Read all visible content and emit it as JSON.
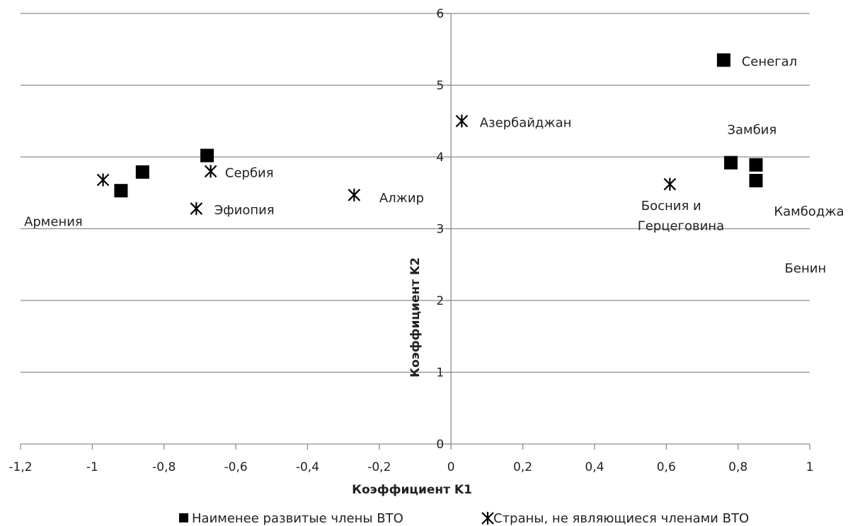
{
  "chart_data": {
    "type": "scatter",
    "title": "",
    "xlabel": "Коэффициент K1",
    "ylabel": "Коэффициент K2",
    "xlim": [
      -1.2,
      1
    ],
    "ylim": [
      0,
      6
    ],
    "x_ticks": [
      "-1,2",
      "-1",
      "-0,8",
      "-0,6",
      "-0,4",
      "-0,2",
      "0",
      "0,2",
      "0,4",
      "0,6",
      "0,8",
      "1"
    ],
    "y_ticks": [
      "0",
      "1",
      "2",
      "3",
      "4",
      "5",
      "6"
    ],
    "grid": "horizontal",
    "legend_position": "bottom",
    "series": [
      {
        "name": "Наименее развитые члены ВТО",
        "marker": "square",
        "points": [
          {
            "x": -0.92,
            "y": 3.53
          },
          {
            "x": -0.86,
            "y": 3.79
          },
          {
            "x": -0.68,
            "y": 4.02
          },
          {
            "x": 0.76,
            "y": 5.35
          },
          {
            "x": 0.78,
            "y": 3.92
          },
          {
            "x": 0.85,
            "y": 3.89
          },
          {
            "x": 0.85,
            "y": 3.67
          }
        ]
      },
      {
        "name": "Страны, не являющиеся членами ВТО",
        "marker": "asterisk",
        "points": [
          {
            "x": -0.97,
            "y": 3.68
          },
          {
            "x": -0.67,
            "y": 3.8
          },
          {
            "x": -0.71,
            "y": 3.28
          },
          {
            "x": -0.27,
            "y": 3.47
          },
          {
            "x": 0.03,
            "y": 4.5
          },
          {
            "x": 0.61,
            "y": 3.62
          }
        ]
      }
    ],
    "annotations": [
      {
        "text": "Армения",
        "x": -1.19,
        "y": 3.1
      },
      {
        "text": "Сербия",
        "x": -0.63,
        "y": 3.78
      },
      {
        "text": "Эфиопия",
        "x": -0.66,
        "y": 3.26
      },
      {
        "text": "Алжир",
        "x": -0.2,
        "y": 3.43
      },
      {
        "text": "Азербайджан",
        "x": 0.08,
        "y": 4.48
      },
      {
        "text": "Сенегал",
        "x": 0.81,
        "y": 5.33
      },
      {
        "text": "Замбия",
        "x": 0.77,
        "y": 4.38
      },
      {
        "text": "Босния и",
        "x": 0.53,
        "y": 3.32
      },
      {
        "text": "Герцеговина",
        "x": 0.52,
        "y": 3.04
      },
      {
        "text": "Камбоджа",
        "x": 0.9,
        "y": 3.24
      },
      {
        "text": "Бенин",
        "x": 0.93,
        "y": 2.45
      }
    ]
  }
}
